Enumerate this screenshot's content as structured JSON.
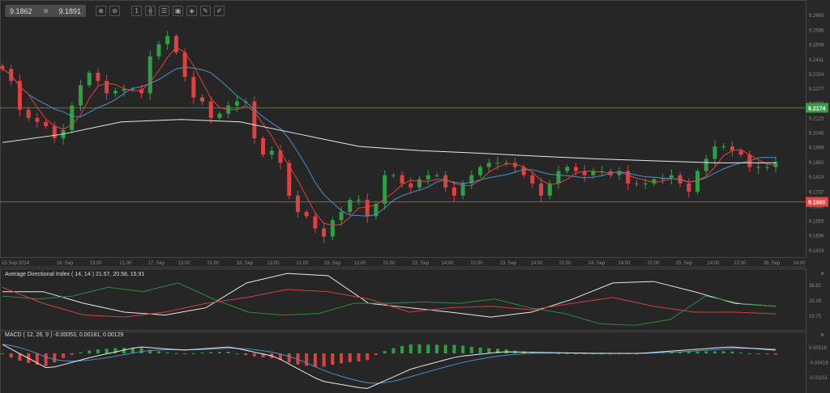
{
  "toolbar": {
    "bid": "9.1862",
    "ask": "9.1891",
    "icons": [
      "zoom-in-icon",
      "zoom-out-icon",
      "period-icon",
      "chart-type-icon",
      "indicators-icon",
      "image-icon",
      "templates-icon",
      "edit-icon",
      "draw-icon"
    ]
  },
  "colors": {
    "background": "#262626",
    "up": "#2ea043",
    "down": "#e04040",
    "sma_fast": "#e04040",
    "sma_slow": "#4a90c8",
    "sma_long": "#e8e8e8",
    "adx": "#e8e8e8",
    "plus_di": "#2e8b3e",
    "minus_di": "#d04040"
  },
  "chart_data": [
    {
      "type": "candlestick",
      "ylim": [
        9.139,
        9.274
      ],
      "y_ticks": [
        "9.2663",
        "9.2586",
        "9.2509",
        "9.2431",
        "9.2354",
        "9.2277",
        "9.2200",
        "9.2123",
        "9.2046",
        "9.1969",
        "9.1892",
        "9.1814",
        "9.1737",
        "9.1660",
        "9.1583",
        "9.1506",
        "9.1429"
      ],
      "x_ticks": [
        "15 Sep 2014",
        "16. Sep",
        "13:00",
        "21:00",
        "17. Sep",
        "13:00",
        "21:00",
        "18. Sep",
        "13:00",
        "21:00",
        "19. Sep",
        "13:00",
        "21:00",
        "22. Sep",
        "14:00",
        "22:00",
        "23. Sep",
        "14:00",
        "22:00",
        "24. Sep",
        "14:00",
        "22:00",
        "25. Sep",
        "14:00",
        "22:00",
        "26. Sep",
        "14:00"
      ],
      "close": [
        9.2379,
        9.2315,
        9.2164,
        9.2121,
        9.21,
        9.2078,
        9.2014,
        9.2057,
        9.2186,
        9.2293,
        9.2358,
        9.2315,
        9.225,
        9.2263,
        9.2272,
        9.2272,
        9.225,
        9.2444,
        9.2508,
        9.2551,
        9.2465,
        9.2336,
        9.2229,
        9.2207,
        9.2121,
        9.2143,
        9.2186,
        9.2207,
        9.2207,
        9.2014,
        9.1928,
        9.1949,
        9.1885,
        9.1713,
        9.1627,
        9.1605,
        9.1541,
        9.1498,
        9.1584,
        9.1627,
        9.1691,
        9.1691,
        9.1605,
        9.167,
        9.182,
        9.182,
        9.1777,
        9.1756,
        9.1799,
        9.182,
        9.182,
        9.1756,
        9.1713,
        9.1777,
        9.182,
        9.1863,
        9.1885,
        9.1885,
        9.1885,
        9.1863,
        9.182,
        9.1777,
        9.1713,
        9.1777,
        9.1842,
        9.1863,
        9.1842,
        9.182,
        9.1842,
        9.1842,
        9.182,
        9.1842,
        9.1777,
        9.1777,
        9.1777,
        9.1799,
        9.1806,
        9.182,
        9.1777,
        9.1734,
        9.1842,
        9.1906,
        9.1971,
        9.1971,
        9.1949,
        9.1928,
        9.1863,
        9.1863,
        9.1863,
        9.1891
      ],
      "sma_long": [
        9.1992,
        9.2035,
        9.21,
        9.2113,
        9.21,
        9.2035,
        9.1971,
        9.195,
        9.1936,
        9.192,
        9.1906,
        9.1895,
        9.1885,
        9.1885
      ],
      "levels": [
        {
          "label": "9.2174",
          "value": 9.2174,
          "color": "#3a9a48"
        },
        {
          "label": "9.1680",
          "value": 9.168,
          "color": "#e04848"
        }
      ]
    },
    {
      "type": "line",
      "title": "Average Directional Index ( 14, 14 ) 21.57, 20.58, 15.91",
      "ylim": [
        5.8,
        47.9
      ],
      "y_ticks": [
        "36.82",
        "26.29",
        "15.75"
      ],
      "series": [
        {
          "key": "adx",
          "values": [
            32,
            32,
            24,
            18,
            16,
            21,
            38,
            44.5,
            43,
            24,
            21,
            18,
            14.6,
            18,
            26.8,
            38,
            39,
            32,
            24,
            22
          ]
        },
        {
          "key": "plus_di",
          "values": [
            29,
            27,
            29,
            35,
            32,
            38,
            27,
            18,
            16,
            17,
            24,
            24,
            25,
            24,
            27,
            21,
            17,
            10,
            9,
            13,
            29,
            24,
            22
          ]
        },
        {
          "key": "minus_di",
          "values": [
            35,
            24,
            16,
            14.6,
            18,
            24,
            28,
            33.5,
            32,
            27,
            18,
            21,
            22,
            19.6,
            24,
            28,
            22,
            18,
            18,
            16.8
          ]
        }
      ]
    },
    {
      "type": "line+bar",
      "title": "MACD ( 12, 26, 9 ) -0.00053, 0.00181, 0.00129",
      "ylim": [
        -0.0194,
        0.0107
      ],
      "y_ticks": [
        "0.00316",
        "-0.00418",
        "-0.01151"
      ],
      "macd": [
        0.0044,
        -0.0075,
        -0.0016,
        0.0032,
        0.0016,
        0.0032,
        -0.0016,
        -0.0135,
        -0.0174,
        -0.0075,
        -0.0016,
        0.0008,
        0.0004,
        0,
        0,
        0.0016,
        0.0032,
        0.0016
      ]
    }
  ]
}
